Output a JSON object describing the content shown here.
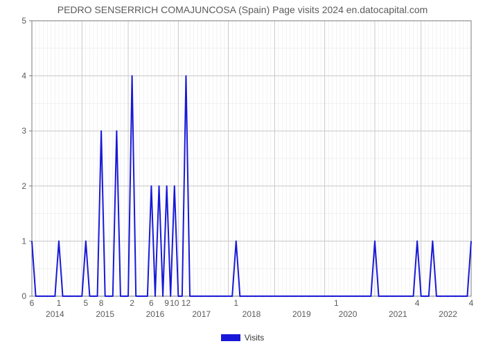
{
  "chart": {
    "type": "line",
    "title": "PEDRO SENSERRICH COMAJUNCOSA (Spain) Page visits 2024 en.datocapital.com",
    "title_fontsize": 14,
    "title_color": "#5a5a5a",
    "legend_label": "Visits",
    "background_color": "#ffffff",
    "plot_background": "#ffffff",
    "grid_major_color": "#c8c8c8",
    "grid_minor_color": "#e4e4e4",
    "axis_line_color": "#7a7a7a",
    "tick_font_color": "#5a5a5a",
    "tick_fontsize": 12,
    "year_fontsize": 12,
    "line_color": "#1818d8",
    "line_width": 2,
    "legend_swatch_color": "#1818d8",
    "ylim": [
      0,
      5
    ],
    "ytick_step": 1,
    "year_labels": [
      "2014",
      "2015",
      "2016",
      "2017",
      "2018",
      "2019",
      "2020",
      "2021",
      "2022"
    ],
    "minor_tick_labels": [
      "6",
      "1",
      "5",
      "8",
      "2",
      "6",
      "9",
      "10",
      "12",
      "1",
      "1",
      "4",
      "4"
    ],
    "minor_tick_positions": [
      0,
      7,
      14,
      18,
      26,
      31,
      35,
      37,
      40,
      53,
      79,
      100,
      114
    ],
    "values": [
      1,
      0,
      0,
      0,
      0,
      0,
      0,
      1,
      0,
      0,
      0,
      0,
      0,
      0,
      1,
      0,
      0,
      0,
      3,
      0,
      0,
      0,
      3,
      0,
      0,
      0,
      4,
      0,
      0,
      0,
      0,
      2,
      0,
      2,
      0,
      2,
      0,
      2,
      0,
      0,
      4,
      0,
      0,
      0,
      0,
      0,
      0,
      0,
      0,
      0,
      0,
      0,
      0,
      1,
      0,
      0,
      0,
      0,
      0,
      0,
      0,
      0,
      0,
      0,
      0,
      0,
      0,
      0,
      0,
      0,
      0,
      0,
      0,
      0,
      0,
      0,
      0,
      0,
      0,
      0,
      0,
      0,
      0,
      0,
      0,
      0,
      0,
      0,
      0,
      1,
      0,
      0,
      0,
      0,
      0,
      0,
      0,
      0,
      0,
      0,
      1,
      0,
      0,
      0,
      1,
      0,
      0,
      0,
      0,
      0,
      0,
      0,
      0,
      0,
      1
    ]
  }
}
